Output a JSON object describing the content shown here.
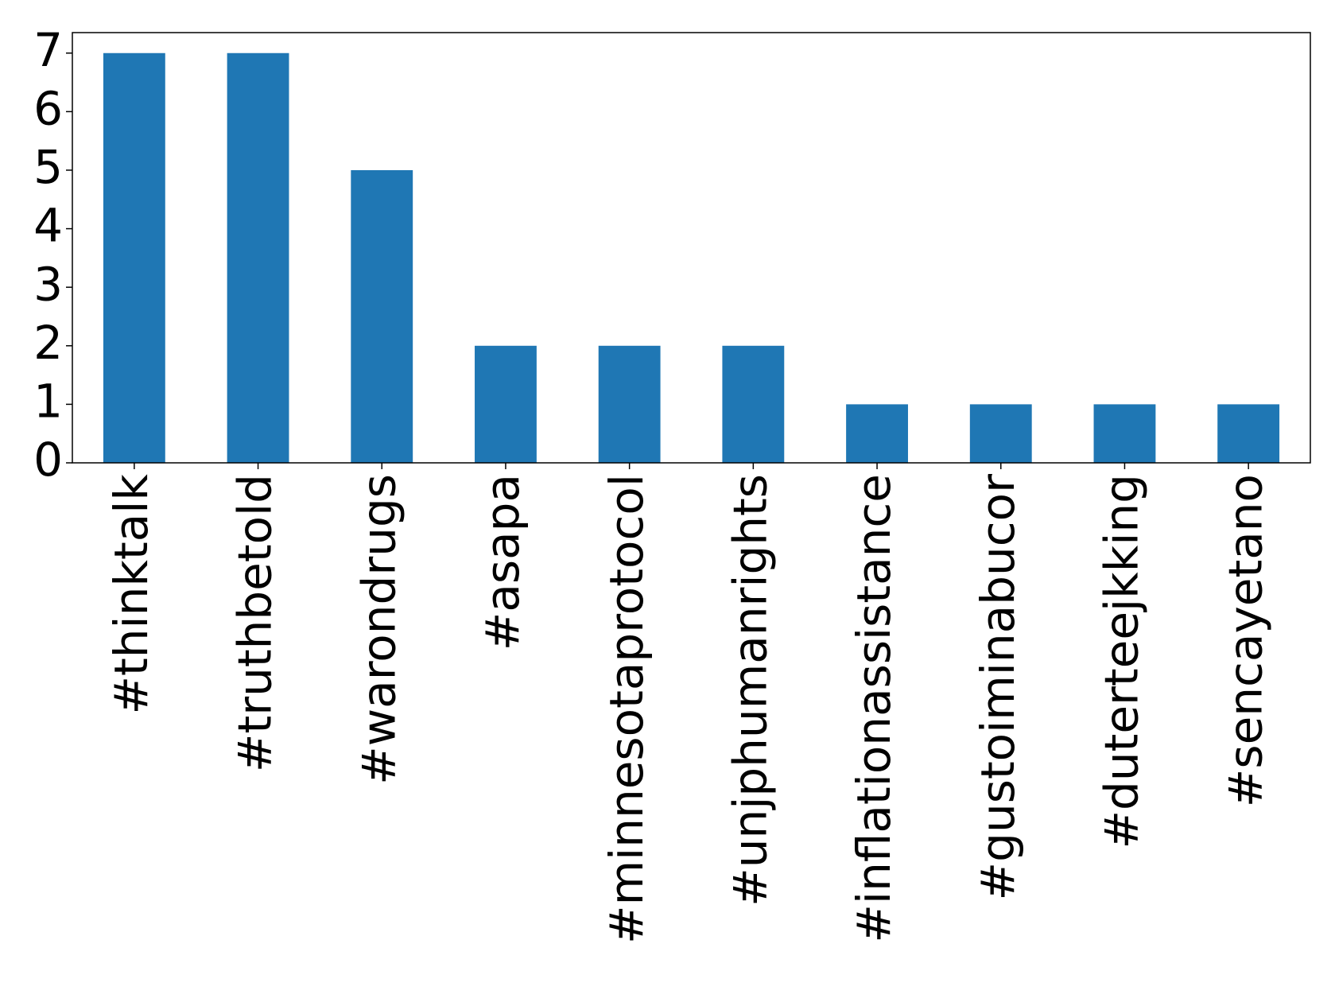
{
  "chart_data": {
    "type": "bar",
    "categories": [
      "#thinktalk",
      "#truthbetold",
      "#warondrugs",
      "#asapa",
      "#minnesotaprotocol",
      "#unjphumanrights",
      "#inflationassistance",
      "#gustoiminabucor",
      "#duterteejkking",
      "#sencayetano"
    ],
    "values": [
      7,
      7,
      5,
      2,
      2,
      2,
      1,
      1,
      1,
      1
    ],
    "color": "#1f77b4",
    "ylim": [
      0,
      7.35
    ],
    "yticks": [
      0,
      1,
      2,
      3,
      4,
      5,
      6,
      7
    ],
    "grid": false
  }
}
